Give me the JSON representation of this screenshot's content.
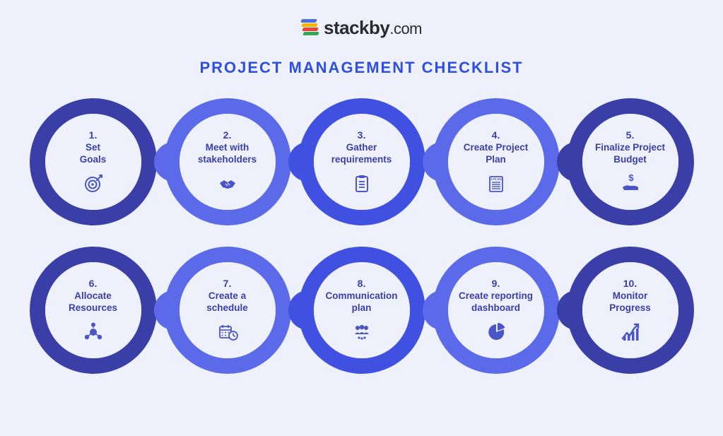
{
  "brand": {
    "name": "stackby",
    "suffix": ".com",
    "logo_colors": [
      "#4a6ee0",
      "#f4b400",
      "#e94335",
      "#34a853"
    ]
  },
  "title": "PROJECT MANAGEMENT CHECKLIST",
  "title_color": "#2f4fe0",
  "background_color": "#eef1fb",
  "ring_colors": [
    "#3a3fa8",
    "#5a6ae8",
    "#4050e0",
    "#5a6ae8",
    "#3a3fa8"
  ],
  "inner_fill": "#eef1fb",
  "text_color": "#3a3fa8",
  "icon_color": "#4a55c8",
  "ring_width": 22,
  "node_size": 180,
  "inner_size": 136,
  "items": [
    {
      "n": "1.",
      "label": "Set\nGoals",
      "icon": "target-icon"
    },
    {
      "n": "2.",
      "label": "Meet with\nstakeholders",
      "icon": "handshake-icon"
    },
    {
      "n": "3.",
      "label": "Gather\nrequirements",
      "icon": "clipboard-icon"
    },
    {
      "n": "4.",
      "label": "Create Project\nPlan",
      "icon": "plan-icon"
    },
    {
      "n": "5.",
      "label": "Finalize Project\nBudget",
      "icon": "money-hand-icon"
    },
    {
      "n": "6.",
      "label": "Allocate\nResources",
      "icon": "people-network-icon"
    },
    {
      "n": "7.",
      "label": "Create a\nschedule",
      "icon": "calendar-clock-icon"
    },
    {
      "n": "8.",
      "label": "Communication\nplan",
      "icon": "team-icon"
    },
    {
      "n": "9.",
      "label": "Create reporting\ndashboard",
      "icon": "pie-chart-icon"
    },
    {
      "n": "10.",
      "label": "Monitor\nProgress",
      "icon": "trend-up-icon"
    }
  ]
}
